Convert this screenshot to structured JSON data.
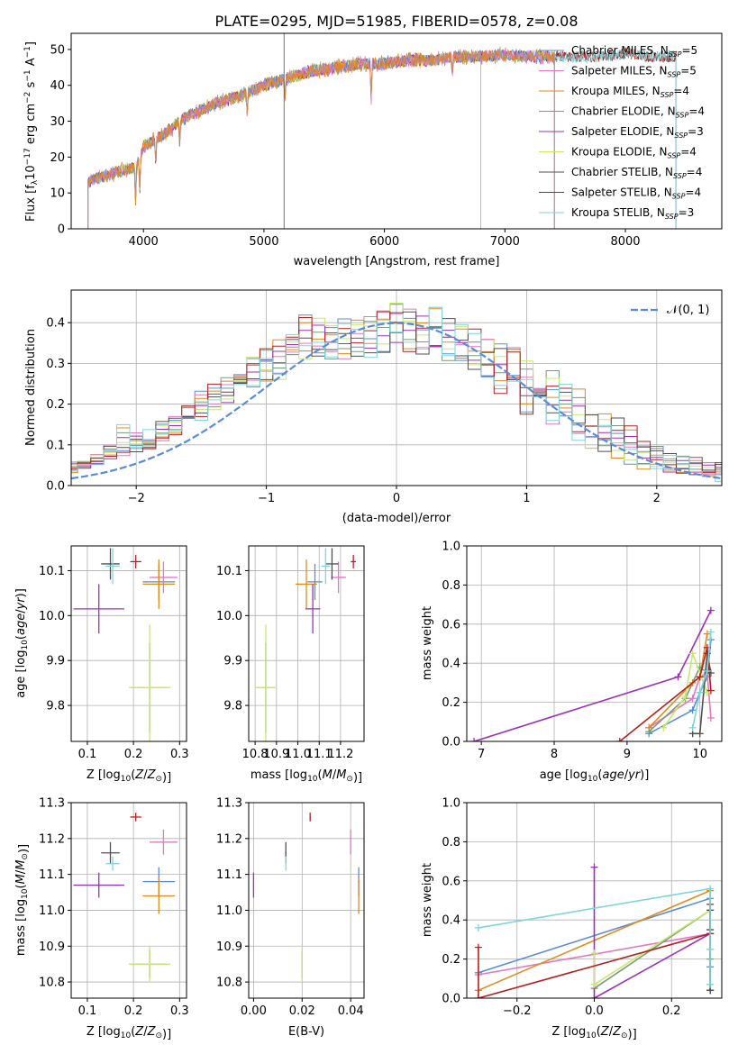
{
  "figure": {
    "title": "PLATE=0295, MJD=51985, FIBERID=0578, z=0.08"
  },
  "colors": {
    "Chabrier MILES": "#5b8bd8",
    "Salpeter MILES": "#e377c2",
    "Kroupa MILES": "#e08a1e",
    "Chabrier ELODIE": "#7a9a7a",
    "Salpeter ELODIE": "#9b30b8",
    "Kroupa ELODIE": "#c8e86a",
    "Chabrier STELIB": "#505050",
    "Salpeter STELIB": "#b22222",
    "Kroupa STELIB": "#7fd6d9",
    "extra_green": "#6aa84f",
    "normal_curve": "#5b8bd8"
  },
  "chart_data": [
    {
      "type": "line",
      "name": "spectrum",
      "xlabel": "wavelength [Angstrom, rest frame]",
      "ylabel": "Flux [f_λ10^-17 erg cm^-2 s^-1 A^-1]",
      "xlim": [
        3400,
        8800
      ],
      "ylim": [
        0,
        54.5
      ],
      "xticks": [
        4000,
        5000,
        6000,
        7000,
        8000
      ],
      "yticks": [
        0,
        10,
        20,
        30,
        40,
        50
      ],
      "continuum": {
        "x": [
          3540,
          3600,
          3700,
          3800,
          3900,
          3950,
          4000,
          4100,
          4200,
          4300,
          4400,
          4600,
          4800,
          5000,
          5200,
          5400,
          5600,
          5800,
          6000,
          6200,
          6400,
          6600,
          6800,
          7000,
          7200,
          7400,
          7600,
          7800,
          8000,
          8200,
          8400
        ],
        "y": [
          13,
          14,
          15,
          16,
          17,
          18,
          23,
          25,
          27,
          30,
          32,
          35,
          37,
          40,
          42,
          44,
          45,
          46,
          46,
          47,
          47,
          48,
          48,
          48.5,
          48,
          48,
          48,
          48,
          49,
          48,
          48
        ]
      },
      "legend": [
        {
          "label": "Chabrier MILES, N_SSP=5",
          "series": "Chabrier MILES"
        },
        {
          "label": "Salpeter MILES, N_SSP=5",
          "series": "Salpeter MILES"
        },
        {
          "label": "Kroupa MILES, N_SSP=4",
          "series": "Kroupa MILES"
        },
        {
          "label": "Chabrier ELODIE, N_SSP=4",
          "series": "Chabrier ELODIE"
        },
        {
          "label": "Salpeter ELODIE, N_SSP=3",
          "series": "Salpeter ELODIE"
        },
        {
          "label": "Kroupa ELODIE, N_SSP=4",
          "series": "Kroupa ELODIE"
        },
        {
          "label": "Chabrier STELIB, N_SSP=4",
          "series": "Chabrier STELIB"
        },
        {
          "label": "Salpeter STELIB, N_SSP=4",
          "series": "Salpeter STELIB"
        },
        {
          "label": "Kroupa STELIB, N_SSP=3",
          "series": "Kroupa STELIB"
        }
      ],
      "legend_position": "upper-right"
    },
    {
      "type": "histogram",
      "name": "residuals",
      "xlabel": "(data-model)/error",
      "ylabel": "Normed distribution",
      "xlim": [
        -2.5,
        2.5
      ],
      "ylim": [
        0,
        0.48
      ],
      "xticks": [
        -2,
        -1,
        0,
        1,
        2
      ],
      "yticks": [
        0.0,
        0.1,
        0.2,
        0.3,
        0.4
      ],
      "bin_width": 0.1,
      "envelope_hi": [
        0.03,
        0.03,
        0.04,
        0.05,
        0.06,
        0.06,
        0.08,
        0.1,
        0.15,
        0.13,
        0.14,
        0.16,
        0.17,
        0.2,
        0.24,
        0.25,
        0.27,
        0.28,
        0.32,
        0.34,
        0.37,
        0.38,
        0.42,
        0.42,
        0.41,
        0.41,
        0.42,
        0.43,
        0.44,
        0.45,
        0.44,
        0.42,
        0.44,
        0.42,
        0.4,
        0.39,
        0.37,
        0.35,
        0.34,
        0.32,
        0.3,
        0.3,
        0.25,
        0.24,
        0.2,
        0.18,
        0.17,
        0.15,
        0.11,
        0.1,
        0.08,
        0.08,
        0.07,
        0.06,
        0.06,
        0.05,
        0.04,
        0.04,
        0.03
      ],
      "envelope_lo": [
        0.01,
        0.02,
        0.02,
        0.03,
        0.03,
        0.04,
        0.05,
        0.06,
        0.07,
        0.08,
        0.09,
        0.11,
        0.12,
        0.15,
        0.16,
        0.18,
        0.2,
        0.22,
        0.23,
        0.24,
        0.26,
        0.28,
        0.3,
        0.31,
        0.31,
        0.3,
        0.31,
        0.31,
        0.32,
        0.33,
        0.32,
        0.31,
        0.3,
        0.3,
        0.29,
        0.28,
        0.25,
        0.22,
        0.2,
        0.17,
        0.16,
        0.15,
        0.13,
        0.11,
        0.09,
        0.07,
        0.06,
        0.05,
        0.04,
        0.04,
        0.03,
        0.03,
        0.02,
        0.02,
        0.01,
        0.01,
        0.01,
        0.01,
        0.01
      ],
      "legend": [
        {
          "label": "𝒩(0, 1)",
          "series": "normal"
        }
      ],
      "legend_position": "upper-right"
    },
    {
      "type": "errorbar",
      "name": "age_vs_Z",
      "xlabel": "Z [log10(Z/Z⊙)]",
      "ylabel": "age  [log10(age/yr)]",
      "xlim": [
        0.065,
        0.315
      ],
      "ylim": [
        9.72,
        10.155
      ],
      "xticks": [
        0.1,
        0.2,
        0.3
      ],
      "yticks": [
        9.8,
        9.9,
        10.0,
        10.1
      ],
      "points": [
        {
          "s": "Chabrier MILES",
          "x": 0.255,
          "y": 10.075,
          "dx": 0.035,
          "dy": 0.04
        },
        {
          "s": "Salpeter MILES",
          "x": 0.265,
          "y": 10.085,
          "dx": 0.03,
          "dy": 0.035
        },
        {
          "s": "Kroupa MILES",
          "x": 0.255,
          "y": 10.07,
          "dx": 0.035,
          "dy": 0.055
        },
        {
          "s": "Chabrier ELODIE",
          "x": 0.235,
          "y": 9.84,
          "dx": 0.04,
          "dy": 0.1
        },
        {
          "s": "Salpeter ELODIE",
          "x": 0.125,
          "y": 10.015,
          "dx": 0.055,
          "dy": 0.055
        },
        {
          "s": "Kroupa ELODIE",
          "x": 0.235,
          "y": 9.84,
          "dx": 0.045,
          "dy": 0.14
        },
        {
          "s": "Chabrier STELIB",
          "x": 0.15,
          "y": 10.115,
          "dx": 0.02,
          "dy": 0.035
        },
        {
          "s": "Salpeter STELIB",
          "x": 0.205,
          "y": 10.12,
          "dx": 0.012,
          "dy": 0.015
        },
        {
          "s": "Kroupa STELIB",
          "x": 0.155,
          "y": 10.11,
          "dx": 0.015,
          "dy": 0.04
        }
      ]
    },
    {
      "type": "errorbar",
      "name": "age_vs_mass",
      "xlabel": "mass [log10(M/M⊙)]",
      "ylabel": "",
      "xlim": [
        10.77,
        11.31
      ],
      "ylim": [
        9.72,
        10.155
      ],
      "xticks": [
        10.8,
        10.9,
        11.0,
        11.1,
        11.2
      ],
      "yticks": [
        9.8,
        9.9,
        10.0,
        10.1
      ],
      "points": [
        {
          "s": "Chabrier MILES",
          "x": 11.08,
          "y": 10.075,
          "dx": 0.035,
          "dy": 0.04
        },
        {
          "s": "Salpeter MILES",
          "x": 11.19,
          "y": 10.085,
          "dx": 0.035,
          "dy": 0.035
        },
        {
          "s": "Kroupa MILES",
          "x": 11.04,
          "y": 10.07,
          "dx": 0.05,
          "dy": 0.055
        },
        {
          "s": "Chabrier ELODIE",
          "x": 10.85,
          "y": 9.84,
          "dx": 0.04,
          "dy": 0.1
        },
        {
          "s": "Salpeter ELODIE",
          "x": 11.07,
          "y": 10.015,
          "dx": 0.035,
          "dy": 0.055
        },
        {
          "s": "Kroupa ELODIE",
          "x": 10.85,
          "y": 9.84,
          "dx": 0.05,
          "dy": 0.14
        },
        {
          "s": "Chabrier STELIB",
          "x": 11.16,
          "y": 10.115,
          "dx": 0.03,
          "dy": 0.035
        },
        {
          "s": "Salpeter STELIB",
          "x": 11.26,
          "y": 10.12,
          "dx": 0.012,
          "dy": 0.015
        },
        {
          "s": "Kroupa STELIB",
          "x": 11.13,
          "y": 10.11,
          "dx": 0.02,
          "dy": 0.04
        }
      ]
    },
    {
      "type": "line",
      "name": "mass_weight_vs_age",
      "xlabel": "age  [log10(age/yr)]",
      "ylabel": "mass weight",
      "xlim": [
        6.8,
        10.3
      ],
      "ylim": [
        0,
        1.0
      ],
      "xticks": [
        7,
        8,
        9,
        10
      ],
      "yticks": [
        0.0,
        0.2,
        0.4,
        0.6,
        0.8,
        1.0
      ],
      "series": [
        {
          "s": "Chabrier MILES",
          "x": [
            9.3,
            9.9,
            10.0,
            10.1,
            10.15
          ],
          "y": [
            0.04,
            0.16,
            0.25,
            0.33,
            0.52
          ]
        },
        {
          "s": "Salpeter MILES",
          "x": [
            9.3,
            9.9,
            10.0,
            10.1,
            10.15
          ],
          "y": [
            0.07,
            0.22,
            0.33,
            0.35,
            0.12
          ]
        },
        {
          "s": "Kroupa MILES",
          "x": [
            9.3,
            9.9,
            10.0,
            10.1
          ],
          "y": [
            0.07,
            0.3,
            0.33,
            0.55
          ]
        },
        {
          "s": "Chabrier ELODIE",
          "x": [
            9.3,
            9.8,
            10.0,
            10.1
          ],
          "y": [
            0.05,
            0.22,
            0.38,
            0.35
          ]
        },
        {
          "s": "Salpeter ELODIE",
          "x": [
            6.9,
            9.7,
            10.15
          ],
          "y": [
            0.0,
            0.33,
            0.67
          ]
        },
        {
          "s": "Kroupa ELODIE",
          "x": [
            9.5,
            9.8,
            9.9,
            10.1
          ],
          "y": [
            0.07,
            0.23,
            0.45,
            0.25
          ]
        },
        {
          "s": "Chabrier STELIB",
          "x": [
            9.9,
            10.0,
            10.1,
            10.15
          ],
          "y": [
            0.04,
            0.04,
            0.45,
            0.35
          ]
        },
        {
          "s": "Salpeter STELIB",
          "x": [
            8.9,
            10.0,
            10.1,
            10.15
          ],
          "y": [
            0.0,
            0.33,
            0.48,
            0.26
          ]
        },
        {
          "s": "Kroupa STELIB",
          "x": [
            9.9,
            10.0,
            10.1,
            10.15
          ],
          "y": [
            0.07,
            0.25,
            0.36,
            0.56
          ]
        }
      ]
    },
    {
      "type": "errorbar",
      "name": "mass_vs_Z",
      "xlabel": "Z [log10(Z/Z⊙)]",
      "ylabel": "mass [log10(M/M⊙)]",
      "xlim": [
        0.065,
        0.315
      ],
      "ylim": [
        10.755,
        11.3
      ],
      "xticks": [
        0.1,
        0.2,
        0.3
      ],
      "yticks": [
        10.8,
        10.9,
        11.0,
        11.1,
        11.2,
        11.3
      ],
      "points": [
        {
          "s": "Chabrier MILES",
          "x": 0.255,
          "y": 11.08,
          "dx": 0.035,
          "dy": 0.04
        },
        {
          "s": "Salpeter MILES",
          "x": 0.265,
          "y": 11.19,
          "dx": 0.03,
          "dy": 0.035
        },
        {
          "s": "Kroupa MILES",
          "x": 0.255,
          "y": 11.04,
          "dx": 0.035,
          "dy": 0.05
        },
        {
          "s": "Chabrier ELODIE",
          "x": 0.235,
          "y": 10.85,
          "dx": 0.04,
          "dy": 0.04
        },
        {
          "s": "Salpeter ELODIE",
          "x": 0.125,
          "y": 11.07,
          "dx": 0.055,
          "dy": 0.035
        },
        {
          "s": "Kroupa ELODIE",
          "x": 0.235,
          "y": 10.85,
          "dx": 0.045,
          "dy": 0.05
        },
        {
          "s": "Chabrier STELIB",
          "x": 0.15,
          "y": 11.16,
          "dx": 0.02,
          "dy": 0.03
        },
        {
          "s": "Salpeter STELIB",
          "x": 0.205,
          "y": 11.26,
          "dx": 0.012,
          "dy": 0.012
        },
        {
          "s": "Kroupa STELIB",
          "x": 0.155,
          "y": 11.13,
          "dx": 0.015,
          "dy": 0.02
        }
      ]
    },
    {
      "type": "errorbar",
      "name": "mass_vs_EBV",
      "xlabel": "E(B-V)",
      "ylabel": "",
      "xlim": [
        -0.002,
        0.0455
      ],
      "ylim": [
        10.755,
        11.3
      ],
      "xticks": [
        0.0,
        0.02,
        0.04
      ],
      "yticks": [
        10.8,
        10.9,
        11.0,
        11.1,
        11.2,
        11.3
      ],
      "points": [
        {
          "s": "Chabrier MILES",
          "x": 0.0433,
          "y": 11.08,
          "dx": 0.0003,
          "dy": 0.04
        },
        {
          "s": "Salpeter MILES",
          "x": 0.04,
          "y": 11.19,
          "dx": 0.0002,
          "dy": 0.035
        },
        {
          "s": "Kroupa MILES",
          "x": 0.0433,
          "y": 11.04,
          "dx": 0.0002,
          "dy": 0.05
        },
        {
          "s": "Chabrier ELODIE",
          "x": 0.02,
          "y": 10.85,
          "dx": 0.0001,
          "dy": 0.04
        },
        {
          "s": "Salpeter ELODIE",
          "x": 0.0,
          "y": 11.07,
          "dx": 0.0002,
          "dy": 0.035
        },
        {
          "s": "Kroupa ELODIE",
          "x": 0.02,
          "y": 10.85,
          "dx": 0.0002,
          "dy": 0.05
        },
        {
          "s": "Chabrier STELIB",
          "x": 0.0133,
          "y": 11.16,
          "dx": 0.0002,
          "dy": 0.03
        },
        {
          "s": "Salpeter STELIB",
          "x": 0.0233,
          "y": 11.26,
          "dx": 0.0002,
          "dy": 0.012
        },
        {
          "s": "Kroupa STELIB",
          "x": 0.0133,
          "y": 11.13,
          "dx": 0.0002,
          "dy": 0.02
        }
      ]
    },
    {
      "type": "line",
      "name": "mass_weight_vs_Z",
      "xlabel": "Z [log10(Z/Z⊙)]",
      "ylabel": "mass weight",
      "xlim": [
        -0.33,
        0.33
      ],
      "ylim": [
        0,
        1.0
      ],
      "xticks": [
        -0.2,
        0.0,
        0.2
      ],
      "yticks": [
        0.0,
        0.2,
        0.4,
        0.6,
        0.8,
        1.0
      ],
      "series": [
        {
          "s": "Chabrier MILES",
          "x": [
            -0.3,
            0.3,
            0.3,
            0.3
          ],
          "y": [
            0.13,
            0.51,
            0.16,
            0.04
          ]
        },
        {
          "s": "Salpeter MILES",
          "x": [
            -0.3,
            0.3,
            0.3,
            0.3
          ],
          "y": [
            0.12,
            0.33,
            0.25,
            0.07
          ]
        },
        {
          "s": "Kroupa MILES",
          "x": [
            -0.3,
            0.3,
            0.3
          ],
          "y": [
            0.04,
            0.55,
            0.33
          ]
        },
        {
          "s": "Chabrier ELODIE",
          "x": [
            0.0,
            0.3,
            0.3,
            0.3
          ],
          "y": [
            0.05,
            0.45,
            0.35,
            0.2
          ]
        },
        {
          "s": "Salpeter ELODIE",
          "x": [
            0.0,
            0.0,
            0.3
          ],
          "y": [
            0.67,
            0.0,
            0.33
          ]
        },
        {
          "s": "Kroupa ELODIE",
          "x": [
            0.0,
            0.0,
            0.3,
            0.3
          ],
          "y": [
            0.23,
            0.07,
            0.45,
            0.25
          ]
        },
        {
          "s": "Chabrier STELIB",
          "x": [
            0.3,
            0.3,
            0.3,
            0.3
          ],
          "y": [
            0.04,
            0.04,
            0.35,
            0.45
          ]
        },
        {
          "s": "Salpeter STELIB",
          "x": [
            -0.3,
            -0.3,
            0.3,
            0.3
          ],
          "y": [
            0.26,
            0.0,
            0.33,
            0.48
          ]
        },
        {
          "s": "Kroupa STELIB",
          "x": [
            -0.3,
            0.3,
            0.3,
            0.3
          ],
          "y": [
            0.36,
            0.56,
            0.25,
            0.07
          ]
        }
      ]
    }
  ]
}
